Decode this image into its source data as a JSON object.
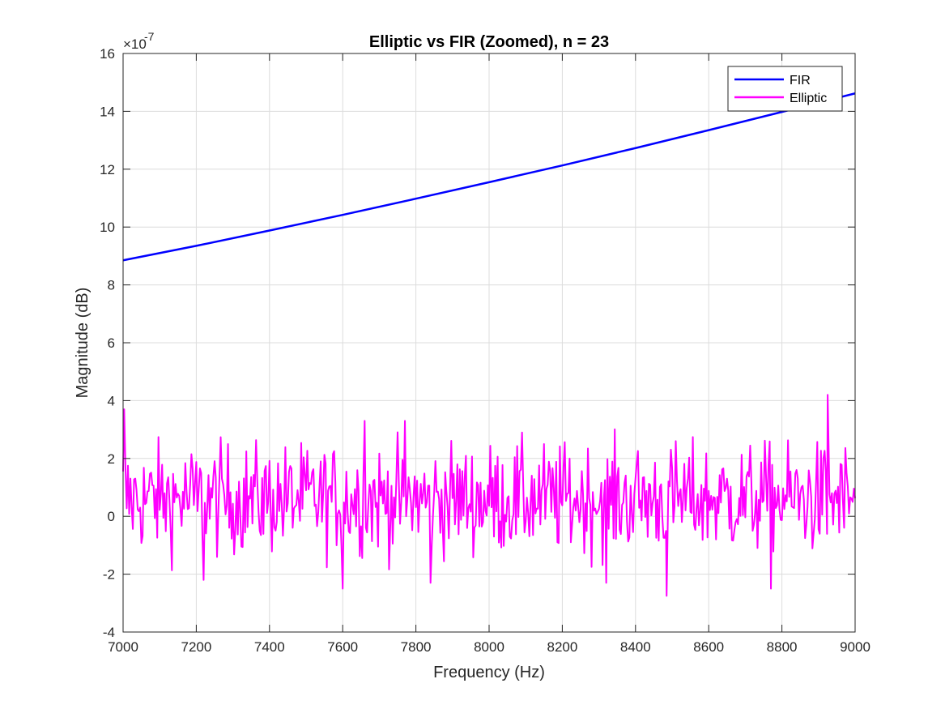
{
  "chart_data": {
    "type": "line",
    "title": "Elliptic vs FIR (Zoomed), n = 23",
    "xlabel": "Frequency (Hz)",
    "ylabel": "Magnitude (dB)",
    "exponent_base": "×10",
    "exponent_power": "-7",
    "xlim": [
      7000,
      9000
    ],
    "ylim": [
      -4,
      16
    ],
    "xticks": [
      7000,
      7200,
      7400,
      7600,
      7800,
      8000,
      8200,
      8400,
      8600,
      8800,
      9000
    ],
    "xtick_labels": [
      "7000",
      "7200",
      "7400",
      "7600",
      "7800",
      "8000",
      "8200",
      "8400",
      "8600",
      "8800",
      "9000"
    ],
    "yticks": [
      -4,
      -2,
      0,
      2,
      4,
      6,
      8,
      10,
      12,
      14,
      16
    ],
    "ytick_labels": [
      "-4",
      "-2",
      "0",
      "2",
      "4",
      "6",
      "8",
      "10",
      "12",
      "14",
      "16"
    ],
    "grid": true,
    "legend_position": "top-right",
    "series": [
      {
        "name": "FIR",
        "color": "#0000ff",
        "x": [
          7000,
          7200,
          7400,
          7600,
          7800,
          8000,
          8200,
          8400,
          8600,
          8800,
          9000
        ],
        "y": [
          8.85,
          9.35,
          9.88,
          10.42,
          10.98,
          11.55,
          12.13,
          12.73,
          13.35,
          13.98,
          14.62
        ]
      },
      {
        "name": "Elliptic",
        "color": "#ff00ff",
        "x_start": 7000,
        "x_end": 9000,
        "center": 0.6,
        "spread": 0.95,
        "points": 600,
        "min": -2.75,
        "max": 4.2,
        "peaks": [
          {
            "x": 7003,
            "y": 3.7
          },
          {
            "x": 7220,
            "y": -2.2
          },
          {
            "x": 7600,
            "y": -2.5
          },
          {
            "x": 7660,
            "y": 3.3
          },
          {
            "x": 7770,
            "y": 3.3
          },
          {
            "x": 7840,
            "y": -2.3
          },
          {
            "x": 8320,
            "y": -2.3
          },
          {
            "x": 8485,
            "y": -2.75
          },
          {
            "x": 8770,
            "y": -2.5
          },
          {
            "x": 8925,
            "y": 4.2
          }
        ]
      }
    ]
  }
}
